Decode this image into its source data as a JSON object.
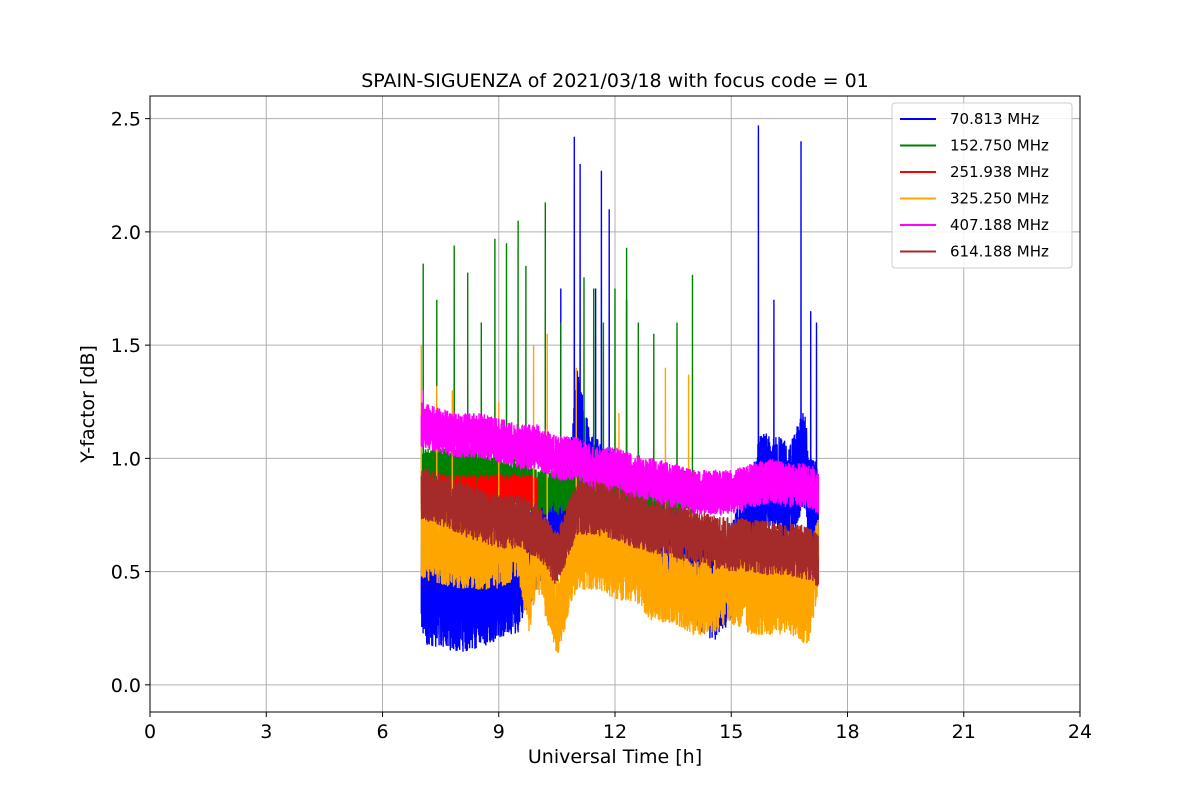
{
  "chart_data": {
    "type": "line",
    "title": "SPAIN-SIGUENZA of 2021/03/18 with focus code = 01",
    "xlabel": "Universal Time [h]",
    "ylabel": "Y-factor [dB]",
    "xlim": [
      0,
      24
    ],
    "ylim": [
      -0.12,
      2.6
    ],
    "xticks": [
      0,
      3,
      6,
      9,
      12,
      15,
      18,
      21,
      24
    ],
    "xtick_labels": [
      "0",
      "3",
      "6",
      "9",
      "12",
      "15",
      "18",
      "21",
      "24"
    ],
    "yticks": [
      0.0,
      0.5,
      1.0,
      1.5,
      2.0,
      2.5
    ],
    "ytick_labels": [
      "0.0",
      "0.5",
      "1.0",
      "1.5",
      "2.0",
      "2.5"
    ],
    "grid": true,
    "legend_position": "top-right",
    "series": [
      {
        "name": "  70.813 MHz",
        "color": "#0000ff",
        "x": [
          7.0,
          7.5,
          8.0,
          8.5,
          9.0,
          9.5,
          10.0,
          10.5,
          10.9,
          11.0,
          11.3,
          11.6,
          12.0,
          12.5,
          13.0,
          13.5,
          14.0,
          14.5,
          15.0,
          15.5,
          15.75,
          16.0,
          16.5,
          16.9,
          17.0,
          17.25
        ],
        "baseline": [
          0.4,
          0.38,
          0.36,
          0.38,
          0.42,
          0.45,
          0.65,
          0.75,
          0.9,
          1.2,
          0.95,
          0.85,
          0.8,
          0.7,
          0.65,
          0.6,
          0.5,
          0.4,
          0.5,
          0.7,
          0.9,
          0.9,
          0.85,
          1.0,
          0.8,
          0.75
        ],
        "spread": 0.22,
        "peaks": [
          [
            10.6,
            1.75
          ],
          [
            10.95,
            2.42
          ],
          [
            11.1,
            2.3
          ],
          [
            11.5,
            1.75
          ],
          [
            11.65,
            2.27
          ],
          [
            11.85,
            2.1
          ],
          [
            12.3,
            1.7
          ],
          [
            15.7,
            2.47
          ],
          [
            16.1,
            1.7
          ],
          [
            16.8,
            2.4
          ],
          [
            17.05,
            1.65
          ],
          [
            17.2,
            1.6
          ]
        ]
      },
      {
        "name": "152.750 MHz",
        "color": "#008000",
        "x": [
          7.0,
          7.5,
          8.0,
          8.5,
          9.0,
          9.5,
          10.0,
          10.5,
          11.0,
          11.5,
          12.0,
          12.5,
          13.0,
          13.5,
          14.0
        ],
        "baseline": [
          0.95,
          0.95,
          0.95,
          0.95,
          0.9,
          0.9,
          0.85,
          0.85,
          0.85,
          0.85,
          0.85,
          0.85,
          0.85,
          0.85,
          0.85
        ],
        "spread": 0.1,
        "peaks": [
          [
            7.05,
            1.86
          ],
          [
            7.4,
            1.7
          ],
          [
            7.85,
            1.94
          ],
          [
            8.2,
            1.82
          ],
          [
            8.55,
            1.6
          ],
          [
            8.9,
            1.97
          ],
          [
            9.2,
            1.95
          ],
          [
            9.5,
            2.05
          ],
          [
            9.7,
            1.85
          ],
          [
            10.2,
            2.13
          ],
          [
            10.6,
            1.6
          ],
          [
            11.2,
            1.8
          ],
          [
            11.45,
            1.75
          ],
          [
            11.7,
            1.6
          ],
          [
            12.0,
            1.75
          ],
          [
            12.3,
            1.93
          ],
          [
            12.6,
            1.6
          ],
          [
            13.0,
            1.55
          ],
          [
            13.6,
            1.6
          ],
          [
            14.0,
            1.81
          ]
        ]
      },
      {
        "name": "251.938 MHz",
        "color": "#ff0000",
        "x": [
          7.0,
          7.5,
          8.0,
          8.5,
          9.0,
          9.5,
          10.0
        ],
        "baseline": [
          0.85,
          0.85,
          0.85,
          0.85,
          0.85,
          0.85,
          0.85
        ],
        "spread": 0.08,
        "peaks": []
      },
      {
        "name": "325.250 MHz",
        "color": "#ffa500",
        "x": [
          7.0,
          7.5,
          8.0,
          8.5,
          9.0,
          9.5,
          9.8,
          10.0,
          10.5,
          11.0,
          11.5,
          12.0,
          12.5,
          13.0,
          13.5,
          14.0,
          14.5,
          15.0,
          15.5,
          16.0,
          16.5,
          17.0,
          17.25
        ],
        "baseline": [
          0.65,
          0.62,
          0.6,
          0.6,
          0.6,
          0.65,
          0.4,
          0.6,
          0.3,
          0.6,
          0.6,
          0.55,
          0.55,
          0.45,
          0.45,
          0.4,
          0.4,
          0.45,
          0.4,
          0.4,
          0.4,
          0.35,
          0.6
        ],
        "spread": 0.18,
        "peaks": [
          [
            7.0,
            1.5
          ],
          [
            7.4,
            1.32
          ],
          [
            7.8,
            1.3
          ],
          [
            9.0,
            1.25
          ],
          [
            9.9,
            1.5
          ],
          [
            10.25,
            1.55
          ],
          [
            11.0,
            1.4
          ],
          [
            12.1,
            1.2
          ],
          [
            13.3,
            1.4
          ],
          [
            13.9,
            1.37
          ]
        ]
      },
      {
        "name": "407.188 MHz",
        "color": "#ff00ff",
        "x": [
          7.0,
          7.5,
          8.0,
          8.5,
          9.0,
          9.5,
          10.0,
          10.5,
          11.0,
          11.5,
          12.0,
          12.5,
          13.0,
          13.5,
          14.0,
          14.5,
          15.0,
          15.5,
          16.0,
          16.5,
          17.0,
          17.25
        ],
        "baseline": [
          1.15,
          1.12,
          1.1,
          1.1,
          1.08,
          1.05,
          1.05,
          1.0,
          1.0,
          0.95,
          0.95,
          0.92,
          0.9,
          0.88,
          0.85,
          0.85,
          0.85,
          0.88,
          0.9,
          0.88,
          0.88,
          0.85
        ],
        "spread": 0.1,
        "peaks": [
          [
            7.05,
            1.3
          ]
        ]
      },
      {
        "name": "614.188 MHz",
        "color": "#a52a2a",
        "x": [
          7.0,
          7.5,
          8.0,
          8.5,
          9.0,
          9.5,
          10.0,
          10.5,
          11.0,
          11.5,
          12.0,
          12.5,
          13.0,
          13.5,
          14.0,
          14.5,
          15.0,
          15.5,
          16.0,
          16.5,
          17.0,
          17.25
        ],
        "baseline": [
          0.85,
          0.82,
          0.78,
          0.75,
          0.72,
          0.72,
          0.68,
          0.55,
          0.78,
          0.78,
          0.76,
          0.72,
          0.7,
          0.68,
          0.66,
          0.63,
          0.62,
          0.62,
          0.6,
          0.6,
          0.58,
          0.55
        ],
        "spread": 0.12,
        "peaks": []
      }
    ]
  }
}
